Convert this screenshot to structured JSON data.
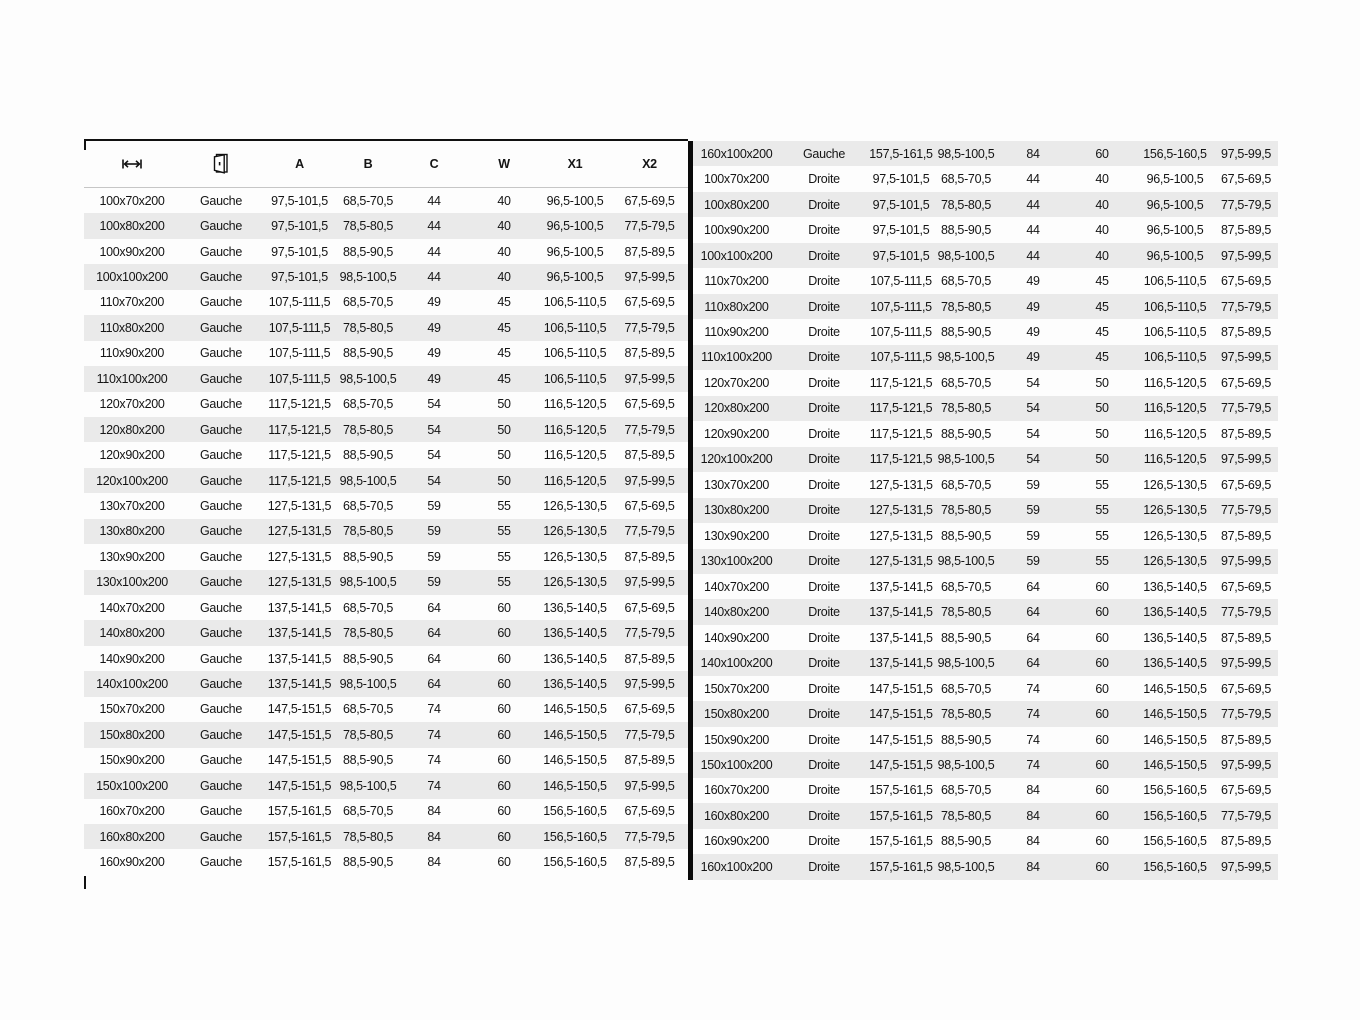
{
  "colors": {
    "stripe": "#eaeaea",
    "frame": "#111111",
    "divider": "#0a0a0a",
    "header_rule": "#c6c6c6",
    "text": "#141414",
    "background": "#fdfdfd"
  },
  "header": {
    "width_icon": "width-measure-icon",
    "door_icon": "door-open-icon",
    "columns": [
      "A",
      "B",
      "C",
      "W",
      "X1",
      "X2"
    ]
  },
  "left_table": {
    "rows": [
      [
        "100x70x200",
        "Gauche",
        "97,5-101,5",
        "68,5-70,5",
        "44",
        "40",
        "96,5-100,5",
        "67,5-69,5"
      ],
      [
        "100x80x200",
        "Gauche",
        "97,5-101,5",
        "78,5-80,5",
        "44",
        "40",
        "96,5-100,5",
        "77,5-79,5"
      ],
      [
        "100x90x200",
        "Gauche",
        "97,5-101,5",
        "88,5-90,5",
        "44",
        "40",
        "96,5-100,5",
        "87,5-89,5"
      ],
      [
        "100x100x200",
        "Gauche",
        "97,5-101,5",
        "98,5-100,5",
        "44",
        "40",
        "96,5-100,5",
        "97,5-99,5"
      ],
      [
        "110x70x200",
        "Gauche",
        "107,5-111,5",
        "68,5-70,5",
        "49",
        "45",
        "106,5-110,5",
        "67,5-69,5"
      ],
      [
        "110x80x200",
        "Gauche",
        "107,5-111,5",
        "78,5-80,5",
        "49",
        "45",
        "106,5-110,5",
        "77,5-79,5"
      ],
      [
        "110x90x200",
        "Gauche",
        "107,5-111,5",
        "88,5-90,5",
        "49",
        "45",
        "106,5-110,5",
        "87,5-89,5"
      ],
      [
        "110x100x200",
        "Gauche",
        "107,5-111,5",
        "98,5-100,5",
        "49",
        "45",
        "106,5-110,5",
        "97,5-99,5"
      ],
      [
        "120x70x200",
        "Gauche",
        "117,5-121,5",
        "68,5-70,5",
        "54",
        "50",
        "116,5-120,5",
        "67,5-69,5"
      ],
      [
        "120x80x200",
        "Gauche",
        "117,5-121,5",
        "78,5-80,5",
        "54",
        "50",
        "116,5-120,5",
        "77,5-79,5"
      ],
      [
        "120x90x200",
        "Gauche",
        "117,5-121,5",
        "88,5-90,5",
        "54",
        "50",
        "116,5-120,5",
        "87,5-89,5"
      ],
      [
        "120x100x200",
        "Gauche",
        "117,5-121,5",
        "98,5-100,5",
        "54",
        "50",
        "116,5-120,5",
        "97,5-99,5"
      ],
      [
        "130x70x200",
        "Gauche",
        "127,5-131,5",
        "68,5-70,5",
        "59",
        "55",
        "126,5-130,5",
        "67,5-69,5"
      ],
      [
        "130x80x200",
        "Gauche",
        "127,5-131,5",
        "78,5-80,5",
        "59",
        "55",
        "126,5-130,5",
        "77,5-79,5"
      ],
      [
        "130x90x200",
        "Gauche",
        "127,5-131,5",
        "88,5-90,5",
        "59",
        "55",
        "126,5-130,5",
        "87,5-89,5"
      ],
      [
        "130x100x200",
        "Gauche",
        "127,5-131,5",
        "98,5-100,5",
        "59",
        "55",
        "126,5-130,5",
        "97,5-99,5"
      ],
      [
        "140x70x200",
        "Gauche",
        "137,5-141,5",
        "68,5-70,5",
        "64",
        "60",
        "136,5-140,5",
        "67,5-69,5"
      ],
      [
        "140x80x200",
        "Gauche",
        "137,5-141,5",
        "78,5-80,5",
        "64",
        "60",
        "136,5-140,5",
        "77,5-79,5"
      ],
      [
        "140x90x200",
        "Gauche",
        "137,5-141,5",
        "88,5-90,5",
        "64",
        "60",
        "136,5-140,5",
        "87,5-89,5"
      ],
      [
        "140x100x200",
        "Gauche",
        "137,5-141,5",
        "98,5-100,5",
        "64",
        "60",
        "136,5-140,5",
        "97,5-99,5"
      ],
      [
        "150x70x200",
        "Gauche",
        "147,5-151,5",
        "68,5-70,5",
        "74",
        "60",
        "146,5-150,5",
        "67,5-69,5"
      ],
      [
        "150x80x200",
        "Gauche",
        "147,5-151,5",
        "78,5-80,5",
        "74",
        "60",
        "146,5-150,5",
        "77,5-79,5"
      ],
      [
        "150x90x200",
        "Gauche",
        "147,5-151,5",
        "88,5-90,5",
        "74",
        "60",
        "146,5-150,5",
        "87,5-89,5"
      ],
      [
        "150x100x200",
        "Gauche",
        "147,5-151,5",
        "98,5-100,5",
        "74",
        "60",
        "146,5-150,5",
        "97,5-99,5"
      ],
      [
        "160x70x200",
        "Gauche",
        "157,5-161,5",
        "68,5-70,5",
        "84",
        "60",
        "156,5-160,5",
        "67,5-69,5"
      ],
      [
        "160x80x200",
        "Gauche",
        "157,5-161,5",
        "78,5-80,5",
        "84",
        "60",
        "156,5-160,5",
        "77,5-79,5"
      ],
      [
        "160x90x200",
        "Gauche",
        "157,5-161,5",
        "88,5-90,5",
        "84",
        "60",
        "156,5-160,5",
        "87,5-89,5"
      ]
    ]
  },
  "right_table": {
    "rows": [
      [
        "160x100x200",
        "Gauche",
        "157,5-161,5",
        "98,5-100,5",
        "84",
        "60",
        "156,5-160,5",
        "97,5-99,5"
      ],
      [
        "100x70x200",
        "Droite",
        "97,5-101,5",
        "68,5-70,5",
        "44",
        "40",
        "96,5-100,5",
        "67,5-69,5"
      ],
      [
        "100x80x200",
        "Droite",
        "97,5-101,5",
        "78,5-80,5",
        "44",
        "40",
        "96,5-100,5",
        "77,5-79,5"
      ],
      [
        "100x90x200",
        "Droite",
        "97,5-101,5",
        "88,5-90,5",
        "44",
        "40",
        "96,5-100,5",
        "87,5-89,5"
      ],
      [
        "100x100x200",
        "Droite",
        "97,5-101,5",
        "98,5-100,5",
        "44",
        "40",
        "96,5-100,5",
        "97,5-99,5"
      ],
      [
        "110x70x200",
        "Droite",
        "107,5-111,5",
        "68,5-70,5",
        "49",
        "45",
        "106,5-110,5",
        "67,5-69,5"
      ],
      [
        "110x80x200",
        "Droite",
        "107,5-111,5",
        "78,5-80,5",
        "49",
        "45",
        "106,5-110,5",
        "77,5-79,5"
      ],
      [
        "110x90x200",
        "Droite",
        "107,5-111,5",
        "88,5-90,5",
        "49",
        "45",
        "106,5-110,5",
        "87,5-89,5"
      ],
      [
        "110x100x200",
        "Droite",
        "107,5-111,5",
        "98,5-100,5",
        "49",
        "45",
        "106,5-110,5",
        "97,5-99,5"
      ],
      [
        "120x70x200",
        "Droite",
        "117,5-121,5",
        "68,5-70,5",
        "54",
        "50",
        "116,5-120,5",
        "67,5-69,5"
      ],
      [
        "120x80x200",
        "Droite",
        "117,5-121,5",
        "78,5-80,5",
        "54",
        "50",
        "116,5-120,5",
        "77,5-79,5"
      ],
      [
        "120x90x200",
        "Droite",
        "117,5-121,5",
        "88,5-90,5",
        "54",
        "50",
        "116,5-120,5",
        "87,5-89,5"
      ],
      [
        "120x100x200",
        "Droite",
        "117,5-121,5",
        "98,5-100,5",
        "54",
        "50",
        "116,5-120,5",
        "97,5-99,5"
      ],
      [
        "130x70x200",
        "Droite",
        "127,5-131,5",
        "68,5-70,5",
        "59",
        "55",
        "126,5-130,5",
        "67,5-69,5"
      ],
      [
        "130x80x200",
        "Droite",
        "127,5-131,5",
        "78,5-80,5",
        "59",
        "55",
        "126,5-130,5",
        "77,5-79,5"
      ],
      [
        "130x90x200",
        "Droite",
        "127,5-131,5",
        "88,5-90,5",
        "59",
        "55",
        "126,5-130,5",
        "87,5-89,5"
      ],
      [
        "130x100x200",
        "Droite",
        "127,5-131,5",
        "98,5-100,5",
        "59",
        "55",
        "126,5-130,5",
        "97,5-99,5"
      ],
      [
        "140x70x200",
        "Droite",
        "137,5-141,5",
        "68,5-70,5",
        "64",
        "60",
        "136,5-140,5",
        "67,5-69,5"
      ],
      [
        "140x80x200",
        "Droite",
        "137,5-141,5",
        "78,5-80,5",
        "64",
        "60",
        "136,5-140,5",
        "77,5-79,5"
      ],
      [
        "140x90x200",
        "Droite",
        "137,5-141,5",
        "88,5-90,5",
        "64",
        "60",
        "136,5-140,5",
        "87,5-89,5"
      ],
      [
        "140x100x200",
        "Droite",
        "137,5-141,5",
        "98,5-100,5",
        "64",
        "60",
        "136,5-140,5",
        "97,5-99,5"
      ],
      [
        "150x70x200",
        "Droite",
        "147,5-151,5",
        "68,5-70,5",
        "74",
        "60",
        "146,5-150,5",
        "67,5-69,5"
      ],
      [
        "150x80x200",
        "Droite",
        "147,5-151,5",
        "78,5-80,5",
        "74",
        "60",
        "146,5-150,5",
        "77,5-79,5"
      ],
      [
        "150x90x200",
        "Droite",
        "147,5-151,5",
        "88,5-90,5",
        "74",
        "60",
        "146,5-150,5",
        "87,5-89,5"
      ],
      [
        "150x100x200",
        "Droite",
        "147,5-151,5",
        "98,5-100,5",
        "74",
        "60",
        "146,5-150,5",
        "97,5-99,5"
      ],
      [
        "160x70x200",
        "Droite",
        "157,5-161,5",
        "68,5-70,5",
        "84",
        "60",
        "156,5-160,5",
        "67,5-69,5"
      ],
      [
        "160x80x200",
        "Droite",
        "157,5-161,5",
        "78,5-80,5",
        "84",
        "60",
        "156,5-160,5",
        "77,5-79,5"
      ],
      [
        "160x90x200",
        "Droite",
        "157,5-161,5",
        "88,5-90,5",
        "84",
        "60",
        "156,5-160,5",
        "87,5-89,5"
      ],
      [
        "160x100x200",
        "Droite",
        "157,5-161,5",
        "98,5-100,5",
        "84",
        "60",
        "156,5-160,5",
        "97,5-99,5"
      ]
    ]
  }
}
